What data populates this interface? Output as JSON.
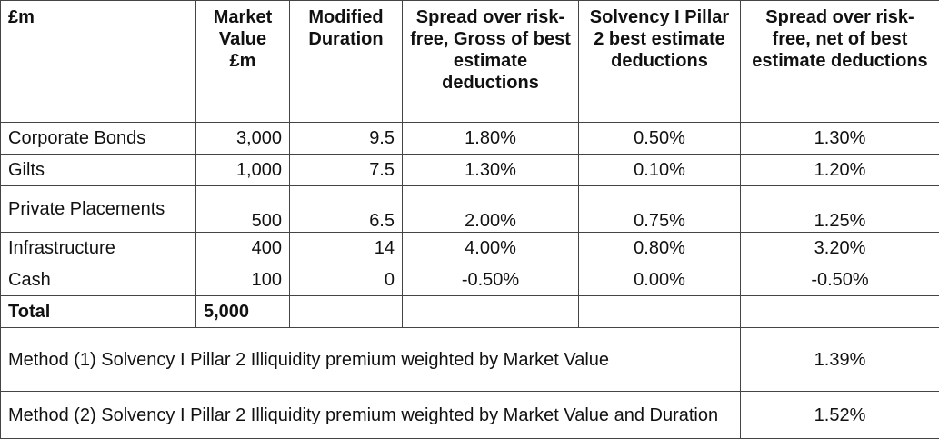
{
  "table": {
    "headers": {
      "col1": "£m",
      "col2": "Market Value £m",
      "col3": "Modified Duration",
      "col4": "Spread over risk-free, Gross of best estimate deductions",
      "col5": "Solvency I Pillar 2 best estimate deductions",
      "col6": "Spread over risk-free, net of best estimate deductions"
    },
    "rows": [
      {
        "asset": "Corporate Bonds",
        "market_value": "3,000",
        "duration": "9.5",
        "gross_spread": "1.80%",
        "deductions": "0.50%",
        "net_spread": "1.30%"
      },
      {
        "asset": "Gilts",
        "market_value": "1,000",
        "duration": "7.5",
        "gross_spread": "1.30%",
        "deductions": "0.10%",
        "net_spread": "1.20%"
      },
      {
        "asset": "Private Placements",
        "market_value": "500",
        "duration": "6.5",
        "gross_spread": "2.00%",
        "deductions": "0.75%",
        "net_spread": "1.25%"
      },
      {
        "asset": "Infrastructure",
        "market_value": "400",
        "duration": "14",
        "gross_spread": "4.00%",
        "deductions": "0.80%",
        "net_spread": "3.20%"
      },
      {
        "asset": "Cash",
        "market_value": "100",
        "duration": "0",
        "gross_spread": "-0.50%",
        "deductions": "0.00%",
        "net_spread": "-0.50%"
      }
    ],
    "total": {
      "label": "Total",
      "market_value": "5,000"
    },
    "methods": [
      {
        "label": "Method (1) Solvency I Pillar 2 Illiquidity premium weighted by Market Value",
        "value": "1.39%"
      },
      {
        "label": "Method (2) Solvency I Pillar 2 Illiquidity premium weighted by Market Value and Duration",
        "value": "1.52%"
      }
    ]
  }
}
